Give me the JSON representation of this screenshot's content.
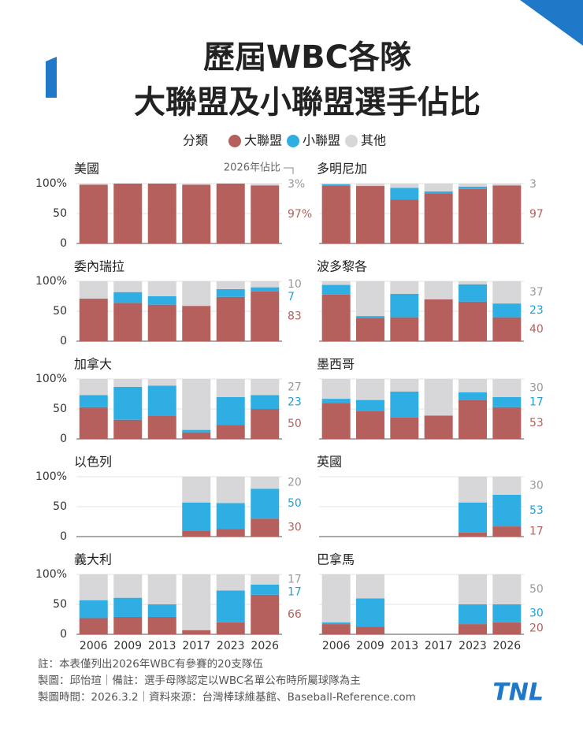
{
  "title": [
    "歷屆WBC各隊",
    "大聯盟及小聯盟選手佔比"
  ],
  "legend": {
    "title": "分類",
    "series": [
      {
        "name": "大聯盟",
        "color": "#b5605c"
      },
      {
        "name": "小聯盟",
        "color": "#2eaee2"
      },
      {
        "name": "其他",
        "color": "#d7d7da"
      }
    ]
  },
  "chart_data": [
    {
      "type": "bar",
      "stacked": true,
      "title": "美國",
      "annotation": "2026年佔比",
      "categories": [
        null,
        null,
        null,
        null,
        null,
        null
      ],
      "series": [
        {
          "values": [
            98,
            100,
            100,
            98,
            100,
            97
          ],
          "value_labels": [
            null,
            null,
            null,
            null,
            null,
            "97%"
          ]
        },
        {
          "values": [
            0,
            0,
            0,
            0,
            0,
            0
          ]
        },
        {
          "values": [
            2,
            0,
            0,
            2,
            0,
            3
          ],
          "value_labels": [
            null,
            null,
            null,
            null,
            null,
            "3%"
          ]
        }
      ],
      "ylim": [
        0,
        100
      ],
      "yticks": [
        0,
        50,
        {
          "value": 100,
          "label": "100%"
        }
      ],
      "tick_labels": true
    },
    {
      "type": "bar",
      "stacked": true,
      "title": "多明尼加",
      "categories": [
        null,
        null,
        null,
        null,
        null,
        null
      ],
      "series": [
        {
          "values": [
            97,
            96,
            73,
            84,
            91,
            97
          ],
          "label_last": true
        },
        {
          "values": [
            2,
            0,
            20,
            3,
            4,
            0
          ]
        },
        {
          "values": [
            1,
            4,
            7,
            13,
            5,
            3
          ],
          "label_last": true
        }
      ],
      "ylim": [
        0,
        100
      ],
      "yticks": [
        0,
        50,
        100
      ],
      "tick_labels": false
    },
    {
      "type": "bar",
      "stacked": true,
      "title": "委內瑞拉",
      "categories": [
        null,
        null,
        null,
        null,
        null,
        null
      ],
      "series": [
        {
          "values": [
            71,
            64,
            61,
            59,
            74,
            83
          ],
          "label_last": true
        },
        {
          "values": [
            0,
            18,
            14,
            0,
            13,
            7
          ],
          "label_last": true
        },
        {
          "values": [
            29,
            18,
            25,
            41,
            13,
            10
          ],
          "label_last": true
        }
      ],
      "ylim": [
        0,
        100
      ],
      "yticks": [
        0,
        50,
        {
          "value": 100,
          "label": "100%"
        }
      ],
      "tick_labels": true
    },
    {
      "type": "bar",
      "stacked": true,
      "title": "波多黎各",
      "categories": [
        null,
        null,
        null,
        null,
        null,
        null
      ],
      "series": [
        {
          "values": [
            78,
            39,
            40,
            70,
            66,
            40
          ],
          "label_last": true
        },
        {
          "values": [
            16,
            3,
            39,
            0,
            29,
            23
          ],
          "label_last": true
        },
        {
          "values": [
            6,
            58,
            21,
            30,
            5,
            37
          ],
          "label_last": true
        }
      ],
      "ylim": [
        0,
        100
      ],
      "yticks": [
        0,
        50,
        100
      ],
      "tick_labels": false
    },
    {
      "type": "bar",
      "stacked": true,
      "title": "加拿大",
      "categories": [
        null,
        null,
        null,
        null,
        null,
        null
      ],
      "series": [
        {
          "values": [
            53,
            32,
            39,
            11,
            23,
            50
          ],
          "label_last": true
        },
        {
          "values": [
            20,
            55,
            50,
            4,
            47,
            23
          ],
          "label_last": true
        },
        {
          "values": [
            27,
            13,
            11,
            85,
            30,
            27
          ],
          "label_last": true
        }
      ],
      "ylim": [
        0,
        100
      ],
      "yticks": [
        0,
        50,
        {
          "value": 100,
          "label": "100%"
        }
      ],
      "tick_labels": true
    },
    {
      "type": "bar",
      "stacked": true,
      "title": "墨西哥",
      "categories": [
        null,
        null,
        null,
        null,
        null,
        null
      ],
      "series": [
        {
          "values": [
            60,
            47,
            36,
            39,
            65,
            53
          ],
          "label_last": true
        },
        {
          "values": [
            7,
            18,
            43,
            0,
            13,
            17
          ],
          "label_last": true
        },
        {
          "values": [
            33,
            35,
            21,
            61,
            22,
            30
          ],
          "label_last": true
        }
      ],
      "ylim": [
        0,
        100
      ],
      "yticks": [
        0,
        50,
        100
      ],
      "tick_labels": false
    },
    {
      "type": "bar",
      "stacked": true,
      "title": "以色列",
      "categories": [
        null,
        null,
        null,
        null,
        null,
        null
      ],
      "series": [
        {
          "values": [
            null,
            null,
            null,
            10,
            13,
            30
          ],
          "label_last": true
        },
        {
          "values": [
            null,
            null,
            null,
            47,
            43,
            50
          ],
          "label_last": true
        },
        {
          "values": [
            null,
            null,
            null,
            43,
            44,
            20
          ],
          "label_last": true
        }
      ],
      "ylim": [
        0,
        100
      ],
      "yticks": [
        0,
        50,
        {
          "value": 100,
          "label": "100%"
        }
      ],
      "tick_labels": true
    },
    {
      "type": "bar",
      "stacked": true,
      "title": "英國",
      "categories": [
        null,
        null,
        null,
        null,
        null,
        null
      ],
      "series": [
        {
          "values": [
            null,
            null,
            null,
            null,
            7,
            17
          ],
          "label_last": true
        },
        {
          "values": [
            null,
            null,
            null,
            null,
            50,
            53
          ],
          "label_last": true
        },
        {
          "values": [
            null,
            null,
            null,
            null,
            43,
            30
          ],
          "label_last": true
        }
      ],
      "ylim": [
        0,
        100
      ],
      "yticks": [
        0,
        50,
        100
      ],
      "tick_labels": false
    },
    {
      "type": "bar",
      "stacked": true,
      "title": "義大利",
      "categories": [
        "2006",
        "2009",
        "2013",
        "2017",
        "2023",
        "2026"
      ],
      "series": [
        {
          "values": [
            27,
            29,
            29,
            7,
            20,
            66
          ],
          "label_last": true
        },
        {
          "values": [
            30,
            32,
            21,
            0,
            53,
            17
          ],
          "label_last": true
        },
        {
          "values": [
            43,
            39,
            50,
            93,
            27,
            17
          ],
          "label_last": true
        }
      ],
      "ylim": [
        0,
        100
      ],
      "yticks": [
        0,
        50,
        {
          "value": 100,
          "label": "100%"
        }
      ],
      "tick_labels": true
    },
    {
      "type": "bar",
      "stacked": true,
      "title": "巴拿馬",
      "categories": [
        "2006",
        "2009",
        "2013",
        "2017",
        "2023",
        "2026"
      ],
      "series": [
        {
          "values": [
            17,
            13,
            null,
            null,
            17,
            20
          ],
          "label_last": true
        },
        {
          "values": [
            3,
            47,
            null,
            null,
            33,
            30
          ],
          "label_last": true
        },
        {
          "values": [
            80,
            40,
            null,
            null,
            50,
            50
          ],
          "label_last": true
        }
      ],
      "ylim": [
        0,
        100
      ],
      "yticks": [
        0,
        50,
        100
      ],
      "tick_labels": false
    }
  ],
  "notes": [
    "註：本表僅列出2026年WBC有參賽的20支隊伍",
    "製圖：邱怡瑄｜備註：選手母隊認定以WBC名單公布時所屬球隊為主",
    "製圖時間：2026.3.2｜資料來源：台灣棒球維基館、Baseball-Reference.com"
  ],
  "logo": "TNL"
}
